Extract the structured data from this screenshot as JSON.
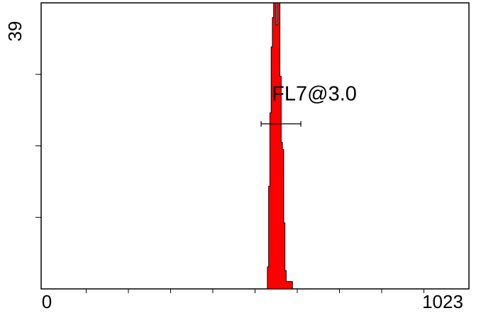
{
  "chart_data": {
    "type": "area",
    "title": "",
    "xlabel": "",
    "ylabel": "",
    "xlim": [
      0,
      1023
    ],
    "ylim": [
      0,
      39
    ],
    "x_tick_labels": [
      "0",
      "1023"
    ],
    "y_tick_labels": [
      "39"
    ],
    "fill_color": "#ff0000",
    "histogram": {
      "x": [
        535,
        538,
        541,
        544,
        547,
        550,
        553,
        556,
        559,
        562,
        565,
        568,
        571,
        574,
        577,
        580,
        583,
        586,
        589,
        592,
        595,
        598,
        601,
        604,
        607
      ],
      "y": [
        0,
        0,
        3.0,
        14,
        24,
        33,
        37,
        39,
        39,
        36,
        39,
        39,
        29,
        20,
        19,
        9,
        2.5,
        1,
        1,
        1,
        1,
        1,
        0,
        0,
        0
      ]
    },
    "gate": {
      "label": "FL7@3.0",
      "x_range": [
        526,
        621
      ],
      "y_level": 22.5
    }
  }
}
